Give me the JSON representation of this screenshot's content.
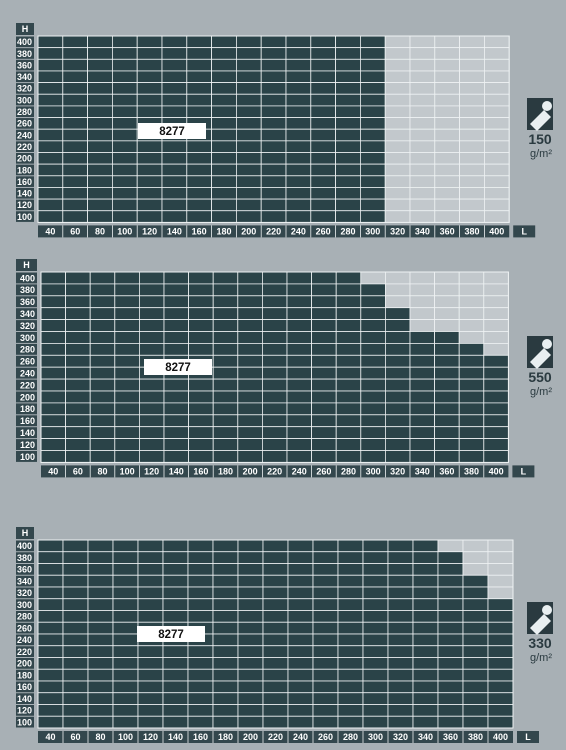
{
  "colors": {
    "background": "#a8b0b5",
    "filled_cell": "#2a4348",
    "empty_cell": "#c2c8cc",
    "grid_line": "#eef2f3",
    "axis_label_bg": "#33474d",
    "axis_text": "#ffffff",
    "product_box_bg": "#ffffff",
    "product_text": "#111111",
    "badge_text": "#2a3a40",
    "badge_icon": "#e9eff1"
  },
  "chart_data": [
    {
      "type": "heatmap",
      "product_label": "8277",
      "weight": {
        "value": "150",
        "unit": "g/m²",
        "icon": "paper-roll-icon"
      },
      "xlabel": "L",
      "ylabel": "H",
      "x_ticks": [
        "40",
        "60",
        "80",
        "100",
        "120",
        "140",
        "160",
        "180",
        "200",
        "220",
        "240",
        "260",
        "280",
        "300",
        "320",
        "340",
        "360",
        "380",
        "400"
      ],
      "y_ticks": [
        "400",
        "380",
        "360",
        "340",
        "320",
        "300",
        "280",
        "260",
        "240",
        "220",
        "200",
        "180",
        "160",
        "140",
        "120",
        "100"
      ],
      "max_H_per_L": [
        400,
        400,
        400,
        400,
        400,
        400,
        400,
        400,
        400,
        400,
        400,
        400,
        400,
        400,
        0,
        0,
        0,
        0,
        0
      ],
      "description": "Available sizes: L up to 300, all H 100–400"
    },
    {
      "type": "heatmap",
      "product_label": "8277",
      "weight": {
        "value": "550",
        "unit": "g/m²",
        "icon": "paper-roll-icon"
      },
      "xlabel": "L",
      "ylabel": "H",
      "x_ticks": [
        "40",
        "60",
        "80",
        "100",
        "120",
        "140",
        "160",
        "180",
        "200",
        "220",
        "240",
        "260",
        "280",
        "300",
        "320",
        "340",
        "360",
        "380",
        "400"
      ],
      "y_ticks": [
        "400",
        "380",
        "360",
        "340",
        "320",
        "300",
        "280",
        "260",
        "240",
        "220",
        "200",
        "180",
        "160",
        "140",
        "120",
        "100"
      ],
      "max_H_per_L": [
        400,
        400,
        400,
        400,
        400,
        400,
        400,
        400,
        400,
        400,
        400,
        400,
        400,
        380,
        340,
        300,
        300,
        280,
        260
      ]
    },
    {
      "type": "heatmap",
      "product_label": "8277",
      "weight": {
        "value": "330",
        "unit": "g/m²",
        "icon": "paper-roll-icon"
      },
      "xlabel": "L",
      "ylabel": "H",
      "x_ticks": [
        "40",
        "60",
        "80",
        "100",
        "120",
        "140",
        "160",
        "180",
        "200",
        "220",
        "240",
        "260",
        "280",
        "300",
        "320",
        "340",
        "360",
        "380",
        "400"
      ],
      "y_ticks": [
        "400",
        "380",
        "360",
        "340",
        "320",
        "300",
        "280",
        "260",
        "240",
        "220",
        "200",
        "180",
        "160",
        "140",
        "120",
        "100"
      ],
      "max_H_per_L": [
        400,
        400,
        400,
        400,
        400,
        400,
        400,
        400,
        400,
        400,
        400,
        400,
        400,
        400,
        400,
        400,
        380,
        340,
        300
      ]
    }
  ]
}
